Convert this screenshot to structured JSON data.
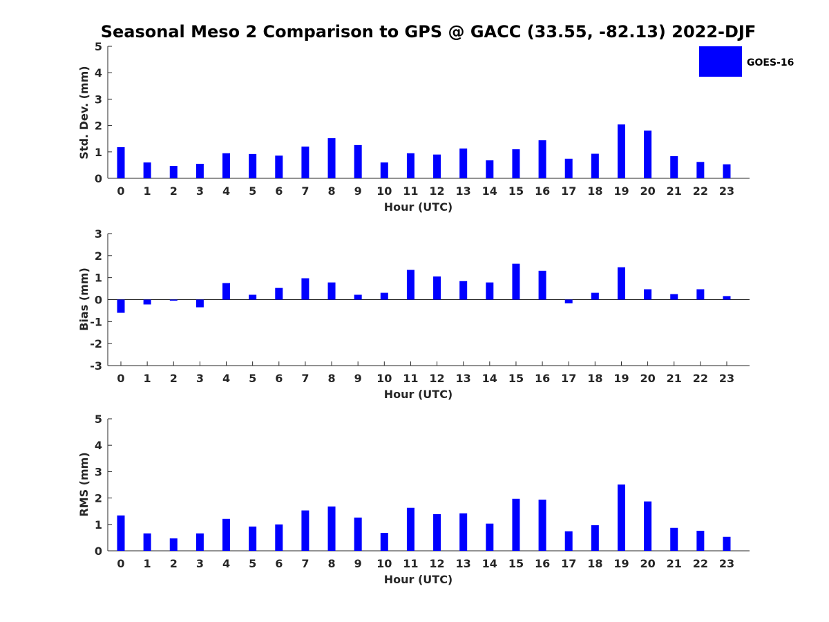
{
  "title": "Seasonal Meso 2 Comparison to GPS @ GACC (33.55, -82.13) 2022-DJF",
  "legend": {
    "label": "GOES-16",
    "color": "#0000ff"
  },
  "chart_data": [
    {
      "type": "bar",
      "name": "std-dev",
      "ylabel": "Std. Dev. (mm)",
      "xlabel": "Hour (UTC)",
      "ylim": [
        0,
        5
      ],
      "yticks": [
        "0",
        "1",
        "2",
        "3",
        "4",
        "5"
      ],
      "categories": [
        "0",
        "1",
        "2",
        "3",
        "4",
        "5",
        "6",
        "7",
        "8",
        "9",
        "10",
        "11",
        "12",
        "13",
        "14",
        "15",
        "16",
        "17",
        "18",
        "19",
        "20",
        "21",
        "22",
        "23"
      ],
      "series": [
        {
          "name": "GOES-16",
          "values": [
            1.18,
            0.6,
            0.47,
            0.55,
            0.95,
            0.92,
            0.86,
            1.2,
            1.52,
            1.26,
            0.6,
            0.95,
            0.9,
            1.13,
            0.68,
            1.1,
            1.44,
            0.74,
            0.93,
            2.04,
            1.81,
            0.84,
            0.62,
            0.53
          ]
        }
      ]
    },
    {
      "type": "bar",
      "name": "bias",
      "ylabel": "Bias (mm)",
      "xlabel": "Hour (UTC)",
      "ylim": [
        -3,
        3
      ],
      "yticks": [
        "-3",
        "-2",
        "-1",
        "0",
        "1",
        "2",
        "3"
      ],
      "categories": [
        "0",
        "1",
        "2",
        "3",
        "4",
        "5",
        "6",
        "7",
        "8",
        "9",
        "10",
        "11",
        "12",
        "13",
        "14",
        "15",
        "16",
        "17",
        "18",
        "19",
        "20",
        "21",
        "22",
        "23"
      ],
      "series": [
        {
          "name": "GOES-16",
          "values": [
            -0.6,
            -0.22,
            -0.05,
            -0.35,
            0.75,
            0.22,
            0.53,
            0.97,
            0.78,
            0.22,
            0.31,
            1.35,
            1.05,
            0.84,
            0.78,
            1.63,
            1.31,
            -0.17,
            0.31,
            1.47,
            0.47,
            0.25,
            0.47,
            0.16
          ]
        }
      ]
    },
    {
      "type": "bar",
      "name": "rms",
      "ylabel": "RMS (mm)",
      "xlabel": "Hour (UTC)",
      "ylim": [
        0,
        5
      ],
      "yticks": [
        "0",
        "1",
        "2",
        "3",
        "4",
        "5"
      ],
      "categories": [
        "0",
        "1",
        "2",
        "3",
        "4",
        "5",
        "6",
        "7",
        "8",
        "9",
        "10",
        "11",
        "12",
        "13",
        "14",
        "15",
        "16",
        "17",
        "18",
        "19",
        "20",
        "21",
        "22",
        "23"
      ],
      "series": [
        {
          "name": "GOES-16",
          "values": [
            1.34,
            0.66,
            0.47,
            0.66,
            1.21,
            0.92,
            1.0,
            1.53,
            1.68,
            1.26,
            0.68,
            1.63,
            1.39,
            1.42,
            1.03,
            1.97,
            1.94,
            0.74,
            0.97,
            2.51,
            1.87,
            0.87,
            0.76,
            0.53
          ]
        }
      ]
    }
  ]
}
